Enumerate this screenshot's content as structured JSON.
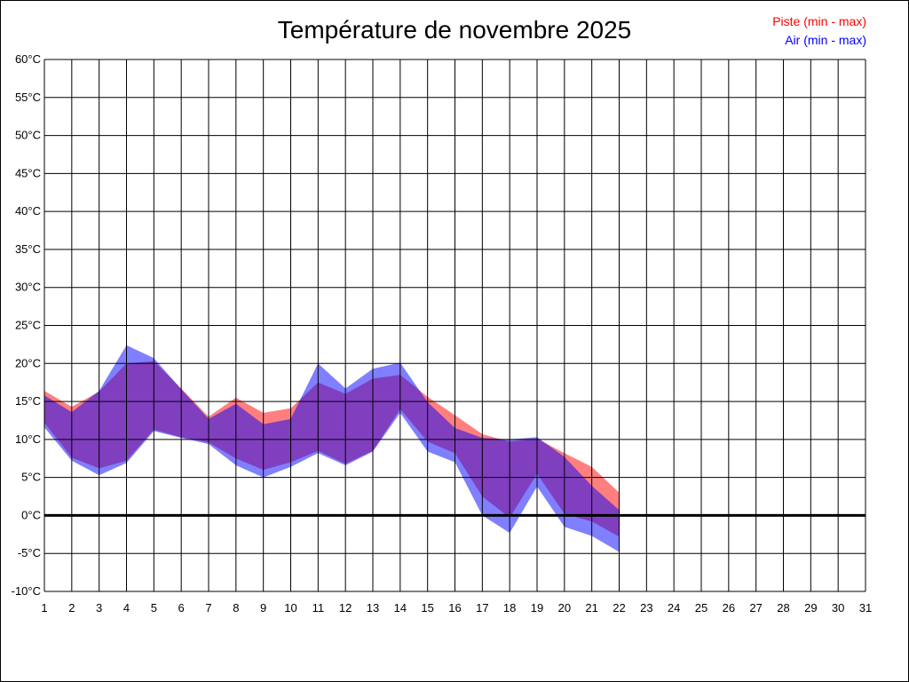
{
  "chart_data": {
    "type": "area",
    "title": "Température de novembre 2025",
    "x": [
      1,
      2,
      3,
      4,
      5,
      6,
      7,
      8,
      9,
      10,
      11,
      12,
      13,
      14,
      15,
      16,
      17,
      18,
      19,
      20,
      21,
      22
    ],
    "x_ticks": [
      1,
      2,
      3,
      4,
      5,
      6,
      7,
      8,
      9,
      10,
      11,
      12,
      13,
      14,
      15,
      16,
      17,
      18,
      19,
      20,
      21,
      22,
      23,
      24,
      25,
      26,
      27,
      28,
      29,
      30,
      31
    ],
    "xlim": [
      1,
      31
    ],
    "ylim": [
      -10,
      60
    ],
    "y_ticks": [
      -10,
      -5,
      0,
      5,
      10,
      15,
      20,
      25,
      30,
      35,
      40,
      45,
      50,
      55,
      60
    ],
    "y_unit": "°C",
    "grid": true,
    "zero_line": true,
    "legend_position": "top-right",
    "series": [
      {
        "name": "Piste (min - max)",
        "color": "#ff0000",
        "min": [
          12.2,
          7.6,
          6.2,
          7.2,
          11.3,
          10.3,
          9.6,
          7.5,
          6.0,
          7.0,
          8.5,
          6.8,
          8.5,
          14.0,
          9.7,
          8.2,
          2.5,
          -0.3,
          5.5,
          0.2,
          -0.8,
          -2.8
        ],
        "max": [
          16.4,
          14.3,
          16.3,
          20.0,
          20.3,
          16.7,
          13.0,
          15.5,
          13.5,
          14.1,
          17.5,
          16.0,
          18.0,
          18.5,
          15.6,
          13.2,
          10.7,
          9.7,
          10.1,
          8.2,
          6.4,
          3.0
        ]
      },
      {
        "name": "Air (min - max)",
        "color": "#0000ff",
        "min": [
          11.6,
          7.2,
          5.3,
          6.9,
          11.1,
          10.2,
          9.4,
          6.6,
          5.0,
          6.4,
          8.2,
          6.6,
          8.4,
          13.5,
          8.4,
          7.0,
          0.0,
          -2.3,
          3.8,
          -1.5,
          -2.7,
          -4.8
        ],
        "max": [
          15.8,
          13.6,
          16.4,
          22.4,
          20.7,
          16.6,
          12.7,
          14.7,
          12.0,
          12.7,
          20.0,
          16.7,
          19.3,
          20.1,
          14.9,
          11.5,
          10.2,
          10.0,
          10.3,
          7.7,
          3.9,
          0.7
        ]
      }
    ]
  }
}
